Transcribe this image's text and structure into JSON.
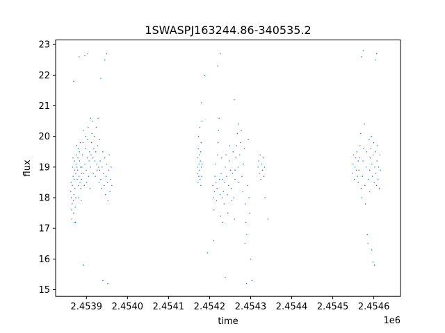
{
  "chart_data": {
    "type": "scatter",
    "title": "1SWASPJ163244.86-340535.2",
    "xlabel": "time",
    "ylabel": "flux",
    "x_offset_label": "1e6",
    "xlim": [
      2.453825,
      2.454665
    ],
    "ylim": [
      14.78,
      23.15
    ],
    "x_ticks": [
      2.4539,
      2.454,
      2.4541,
      2.4542,
      2.4543,
      2.4544,
      2.4545,
      2.4546
    ],
    "x_tick_labels": [
      "2.4539",
      "2.4540",
      "2.4541",
      "2.4542",
      "2.4543",
      "2.4544",
      "2.4545",
      "2.4546"
    ],
    "y_ticks": [
      15,
      16,
      17,
      18,
      19,
      20,
      21,
      22,
      23
    ],
    "y_tick_labels": [
      "15",
      "16",
      "17",
      "18",
      "19",
      "20",
      "21",
      "22",
      "23"
    ],
    "grid": false,
    "legend": "none",
    "marker_color": "#1f77b4",
    "series": [
      {
        "segments": [
          {
            "x0": 2.453862,
            "x1": 2.453874,
            "y": [
              18.2,
              18.5,
              18.0,
              17.6,
              17.3,
              17.8,
              18.4,
              19.0,
              19.3,
              18.7,
              17.9,
              17.5,
              18.1,
              18.6,
              19.2,
              18.9,
              18.3,
              17.7,
              17.2,
              18.0
            ]
          },
          {
            "x0": 2.453874,
            "x1": 2.453888,
            "y": [
              18.8,
              19.1,
              19.4,
              19.7,
              19.0,
              18.6,
              18.9,
              19.3,
              19.6,
              18.4,
              18.0,
              18.7,
              19.5,
              19.2,
              18.5,
              19.8,
              19.0,
              18.3,
              17.9,
              18.8
            ]
          },
          {
            "x0": 2.453888,
            "x1": 2.45391,
            "y": [
              18.6,
              19.0,
              19.4,
              19.8,
              20.2,
              18.8,
              18.4,
              19.1,
              19.6,
              20.0,
              18.9,
              18.5,
              19.3,
              19.9,
              20.3,
              18.7,
              19.2,
              19.5,
              18.3,
              20.6
            ]
          },
          {
            "x0": 2.45391,
            "x1": 2.453932,
            "y": [
              19.0,
              19.4,
              19.8,
              20.1,
              20.5,
              19.3,
              18.8,
              19.6,
              20.0,
              19.2,
              18.7,
              19.5,
              20.3,
              19.1,
              18.9,
              19.7,
              20.6,
              19.0,
              18.5,
              19.9
            ]
          },
          {
            "x0": 2.453932,
            "x1": 2.453962,
            "y": [
              18.9,
              19.2,
              18.6,
              18.3,
              19.0,
              19.5,
              18.8,
              18.4,
              19.3,
              18.1,
              18.7,
              19.1,
              18.5,
              17.9,
              18.9,
              19.4,
              18.2,
              18.6,
              19.0,
              18.4
            ]
          },
          {
            "x0": 2.45417,
            "x1": 2.454182,
            "y": [
              19.0,
              19.3,
              18.8,
              18.5,
              19.6,
              20.0,
              18.7,
              19.1,
              19.4,
              18.9,
              20.3,
              18.6,
              19.2,
              19.5,
              18.4,
              19.8,
              19.0,
              18.7,
              20.5,
              19.1
            ]
          },
          {
            "x0": 2.454208,
            "x1": 2.454232,
            "y": [
              18.4,
              18.0,
              17.6,
              18.2,
              18.7,
              19.1,
              18.5,
              17.9,
              18.3,
              19.4,
              19.8,
              20.2,
              20.6,
              18.6,
              18.1,
              17.4,
              18.8,
              19.3,
              18.0,
              17.2
            ]
          },
          {
            "x0": 2.454232,
            "x1": 2.454262,
            "y": [
              18.6,
              18.2,
              17.8,
              18.5,
              19.0,
              19.4,
              18.7,
              18.1,
              17.5,
              18.4,
              19.2,
              19.7,
              18.9,
              18.3,
              17.9,
              18.8,
              19.5,
              18.0,
              17.3,
              18.6
            ]
          },
          {
            "x0": 2.454262,
            "x1": 2.454298,
            "y": [
              18.9,
              19.3,
              19.7,
              20.1,
              19.0,
              18.5,
              19.4,
              19.8,
              20.2,
              18.7,
              18.2,
              19.1,
              19.6,
              17.8,
              17.2,
              16.8,
              18.4,
              19.9,
              18.0,
              17.5
            ]
          },
          {
            "x0": 2.454318,
            "x1": 2.454334,
            "y": [
              19.0,
              19.2,
              18.8,
              19.4,
              18.6,
              19.1,
              18.9,
              19.3,
              18.7,
              19.0
            ]
          },
          {
            "x0": 2.454548,
            "x1": 2.454562,
            "y": [
              18.8,
              19.1,
              19.4,
              18.6,
              19.0,
              19.3,
              18.9,
              19.5,
              18.7,
              19.2
            ]
          },
          {
            "x0": 2.454562,
            "x1": 2.45459,
            "y": [
              18.5,
              18.9,
              19.3,
              19.7,
              20.1,
              18.3,
              18.0,
              18.7,
              19.2,
              19.6,
              20.4,
              18.4,
              17.8,
              19.0,
              19.5,
              16.8,
              16.5,
              18.6,
              19.9,
              18.2
            ]
          },
          {
            "x0": 2.45459,
            "x1": 2.454616,
            "y": [
              18.9,
              19.3,
              19.6,
              20.0,
              19.1,
              18.7,
              19.4,
              19.8,
              18.5,
              19.0,
              19.5,
              18.8,
              18.4,
              19.2,
              19.7,
              18.6,
              19.0,
              18.3,
              19.4,
              18.9
            ]
          }
        ],
        "outliers": [
          [
            2.453869,
            21.8
          ],
          [
            2.453882,
            22.6
          ],
          [
            2.453896,
            22.65
          ],
          [
            2.453903,
            22.7
          ],
          [
            2.453935,
            21.9
          ],
          [
            2.453945,
            22.5
          ],
          [
            2.453949,
            22.7
          ],
          [
            2.45394,
            15.3
          ],
          [
            2.453952,
            15.2
          ],
          [
            2.453893,
            15.8
          ],
          [
            2.45387,
            17.2
          ],
          [
            2.45418,
            21.1
          ],
          [
            2.454188,
            22.0
          ],
          [
            2.45422,
            22.3
          ],
          [
            2.454226,
            22.7
          ],
          [
            2.45421,
            16.6
          ],
          [
            2.454195,
            16.2
          ],
          [
            2.454238,
            15.4
          ],
          [
            2.45429,
            15.2
          ],
          [
            2.454286,
            16.5
          ],
          [
            2.4543,
            16.0
          ],
          [
            2.454303,
            15.3
          ],
          [
            2.45457,
            22.6
          ],
          [
            2.454574,
            22.8
          ],
          [
            2.454604,
            22.5
          ],
          [
            2.454607,
            22.7
          ],
          [
            2.454598,
            15.9
          ],
          [
            2.454602,
            15.8
          ],
          [
            2.454595,
            16.3
          ],
          [
            2.454584,
            16.8
          ],
          [
            2.45426,
            21.2
          ],
          [
            2.45427,
            20.4
          ],
          [
            2.454335,
            18.0
          ],
          [
            2.454342,
            17.3
          ]
        ]
      }
    ]
  }
}
